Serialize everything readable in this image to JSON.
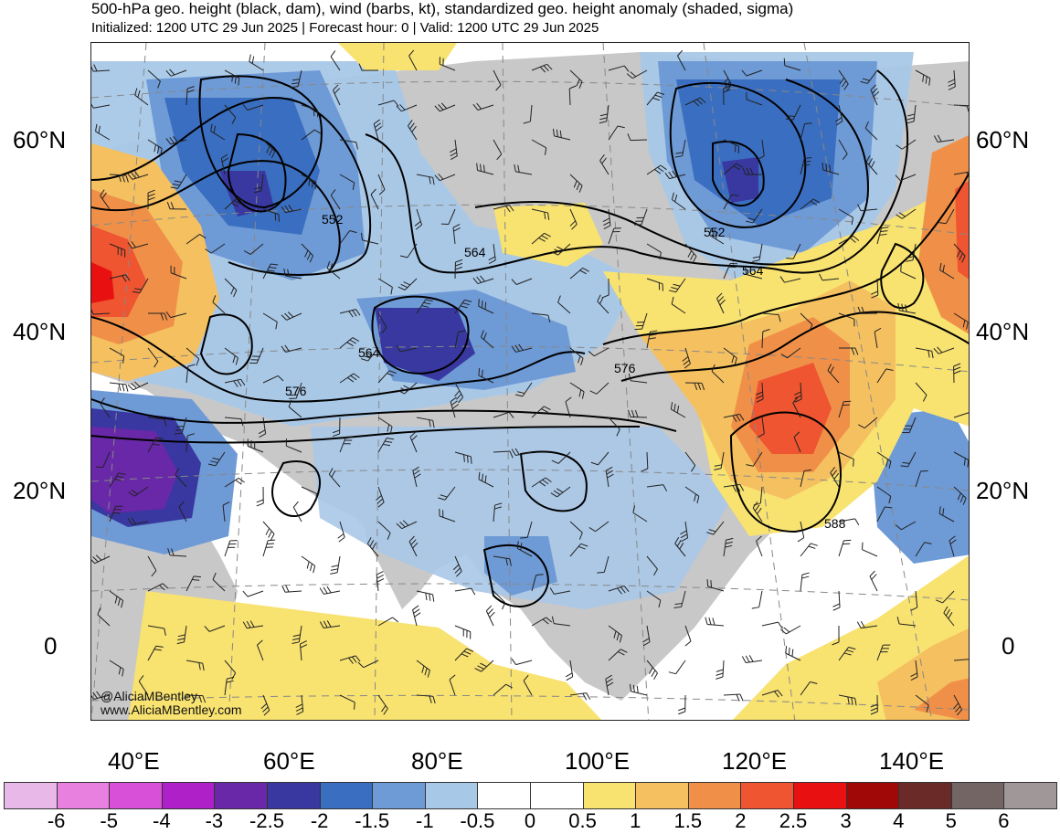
{
  "header": {
    "title": "500-hPa geo. height (black, dam), wind (barbs, kt), standardized geo. height anomaly (shaded, sigma)",
    "subtitle": "Initialized: 1200 UTC 29 Jun 2025 | Forecast hour: 0 | Valid: 1200 UTC 29 Jun 2025"
  },
  "axes": {
    "lat_labels": [
      "60°N",
      "40°N",
      "20°N",
      "0"
    ],
    "lon_labels": [
      "40°E",
      "60°E",
      "80°E",
      "100°E",
      "120°E",
      "140°E"
    ]
  },
  "contour_labels": [
    "552",
    "564",
    "576",
    "552",
    "564",
    "564",
    "576",
    "588"
  ],
  "credit": {
    "handle": "@AliciaMBentley",
    "website": "www.AliciaMBentley.com"
  },
  "colorbar": {
    "ticks": [
      "-6",
      "-5",
      "-4",
      "-3",
      "-2.5",
      "-2",
      "-1.5",
      "-1",
      "-0.5",
      "0",
      "0.5",
      "1",
      "1.5",
      "2",
      "2.5",
      "3",
      "4",
      "5",
      "6"
    ],
    "colors": [
      "#e8b8e8",
      "#e880e0",
      "#d850d8",
      "#b020c8",
      "#6828a8",
      "#3838a0",
      "#3a6ec0",
      "#6e9ad6",
      "#a8c8e8",
      "#ffffff",
      "#ffffff",
      "#f8e270",
      "#f5c060",
      "#f09048",
      "#ee5530",
      "#e81010",
      "#a00808",
      "#6a2a28",
      "#736563",
      "#a09898"
    ]
  },
  "map_colors": {
    "land_neutral": "#c8c8c8",
    "ocean_neutral": "#ffffff"
  }
}
